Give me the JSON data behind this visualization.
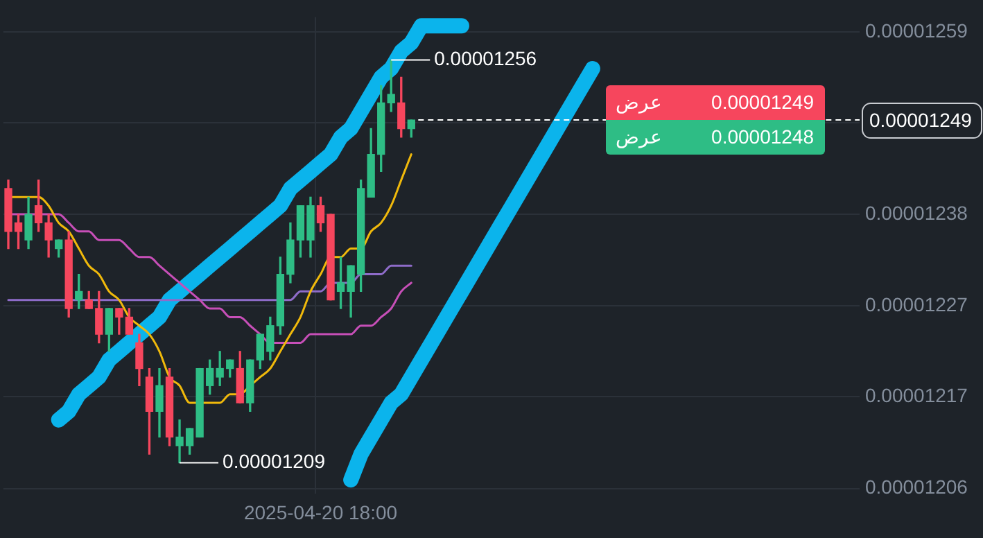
{
  "chart_data": {
    "type": "candlestick",
    "categories": [
      null,
      null,
      null,
      null,
      null,
      null,
      null,
      null,
      null,
      null,
      null,
      null,
      null,
      null,
      null,
      null,
      null,
      null,
      null,
      null,
      null,
      null,
      null,
      null,
      null,
      null,
      null,
      null,
      null,
      null,
      null,
      "2025-04-20 18:00",
      null,
      null,
      null,
      null,
      null,
      null,
      null,
      null,
      null,
      null,
      null,
      null,
      null,
      null,
      null,
      null,
      null,
      null,
      null,
      null,
      null,
      null,
      null,
      null,
      null,
      null,
      null,
      null,
      null,
      null,
      null,
      null,
      null,
      null,
      null,
      null,
      null,
      null,
      null,
      null,
      null,
      null,
      null,
      null,
      null,
      null,
      null,
      null,
      null,
      null,
      null,
      null,
      null
    ],
    "ohlc": [
      [
        1.241e-05,
        1.242e-05,
        1.234e-05,
        1.236e-05
      ],
      [
        1.237e-05,
        1.238e-05,
        1.234e-05,
        1.236e-05
      ],
      [
        1.235e-05,
        1.24e-05,
        1.234e-05,
        1.238e-05
      ],
      [
        1.239e-05,
        1.242e-05,
        1.236e-05,
        1.237e-05
      ],
      [
        1.237e-05,
        1.238e-05,
        1.233e-05,
        1.235e-05
      ],
      [
        1.234e-05,
        1.235e-05,
        1.233e-05,
        1.235e-05
      ],
      [
        1.235e-05,
        1.236e-05,
        1.226e-05,
        1.227e-05
      ],
      [
        1.228e-05,
        1.231e-05,
        1.227e-05,
        1.229e-05
      ],
      [
        1.228e-05,
        1.229e-05,
        1.227e-05,
        1.227e-05
      ],
      [
        1.227e-05,
        1.229e-05,
        1.223e-05,
        1.224e-05
      ],
      [
        1.224e-05,
        1.227e-05,
        1.222e-05,
        1.227e-05
      ],
      [
        1.227e-05,
        1.227e-05,
        1.224e-05,
        1.226e-05
      ],
      [
        1.226e-05,
        1.227e-05,
        1.224e-05,
        1.224e-05
      ],
      [
        1.223e-05,
        1.224e-05,
        1.218e-05,
        1.22e-05
      ],
      [
        1.219e-05,
        1.22e-05,
        1.21e-05,
        1.215e-05
      ],
      [
        1.215e-05,
        1.22e-05,
        1.212e-05,
        1.218e-05
      ],
      [
        1.219e-05,
        1.22e-05,
        1.211e-05,
        1.212e-05
      ],
      [
        1.211e-05,
        1.214e-05,
        1.209e-05,
        1.212e-05
      ],
      [
        1.211e-05,
        1.213e-05,
        1.21e-05,
        1.213e-05
      ],
      [
        1.212e-05,
        1.22e-05,
        1.212e-05,
        1.22e-05
      ],
      [
        1.218e-05,
        1.221e-05,
        1.217e-05,
        1.22e-05
      ],
      [
        1.219e-05,
        1.222e-05,
        1.218e-05,
        1.22e-05
      ],
      [
        1.22e-05,
        1.221e-05,
        1.219e-05,
        1.221e-05
      ],
      [
        1.22e-05,
        1.222e-05,
        1.216e-05,
        1.216e-05
      ],
      [
        1.216e-05,
        1.221e-05,
        1.215e-05,
        1.221e-05
      ],
      [
        1.221e-05,
        1.224e-05,
        1.22e-05,
        1.224e-05
      ],
      [
        1.222e-05,
        1.226e-05,
        1.221e-05,
        1.225e-05
      ],
      [
        1.225e-05,
        1.233e-05,
        1.224e-05,
        1.231e-05
      ],
      [
        1.231e-05,
        1.237e-05,
        1.23e-05,
        1.235e-05
      ],
      [
        1.235e-05,
        1.239e-05,
        1.233e-05,
        1.239e-05
      ],
      [
        1.235e-05,
        1.24e-05,
        1.233e-05,
        1.239e-05
      ],
      [
        1.239e-05,
        1.24e-05,
        1.236e-05,
        1.237e-05
      ],
      [
        1.238e-05,
        1.238e-05,
        1.228e-05,
        1.228e-05
      ],
      [
        1.229e-05,
        1.233e-05,
        1.227e-05,
        1.23e-05
      ],
      [
        1.229e-05,
        1.232e-05,
        1.226e-05,
        1.232e-05
      ],
      [
        1.231e-05,
        1.242e-05,
        1.229e-05,
        1.241e-05
      ],
      [
        1.24e-05,
        1.248e-05,
        1.24e-05,
        1.245e-05
      ],
      [
        1.245e-05,
        1.253e-05,
        1.243e-05,
        1.251e-05
      ],
      [
        1.251e-05,
        1.256e-05,
        1.25e-05,
        1.252e-05
      ],
      [
        1.251e-05,
        1.254e-05,
        1.247e-05,
        1.248e-05
      ],
      [
        1.248e-05,
        1.249e-05,
        1.247e-05,
        1.249e-05
      ],
      null,
      null,
      null,
      null,
      null,
      null,
      null,
      null,
      null,
      null,
      null,
      null,
      null,
      null,
      null,
      null,
      null,
      null,
      null,
      null,
      null,
      null,
      null,
      null,
      null,
      null,
      null,
      null,
      null,
      null,
      null,
      null,
      null,
      null,
      null,
      null,
      null,
      null,
      null,
      null,
      null,
      null,
      null,
      null
    ],
    "series": [
      {
        "type": "line",
        "color": "#f0b90b",
        "values": [
          1.24e-05,
          1.24e-05,
          1.24e-05,
          1.24e-05,
          1.239e-05,
          1.237e-05,
          1.236e-05,
          1.234e-05,
          1.232e-05,
          1.231e-05,
          1.229e-05,
          1.228e-05,
          1.226e-05,
          1.225e-05,
          1.224e-05,
          1.222e-05,
          1.219e-05,
          1.218e-05,
          1.216e-05,
          1.216e-05,
          1.216e-05,
          1.216e-05,
          1.217e-05,
          1.217e-05,
          1.218e-05,
          1.219e-05,
          1.22e-05,
          1.222e-05,
          1.224e-05,
          1.226e-05,
          1.229e-05,
          1.231e-05,
          1.233e-05,
          1.233e-05,
          1.234e-05,
          1.234e-05,
          1.236e-05,
          1.237e-05,
          1.239e-05,
          1.242e-05,
          1.245e-05,
          null,
          null,
          null,
          null,
          null,
          null,
          null,
          null,
          null,
          null,
          null,
          null,
          null,
          null,
          null,
          null,
          null,
          null,
          null,
          null,
          null,
          null,
          null,
          null,
          null,
          null,
          null,
          null,
          null,
          null,
          null,
          null,
          null,
          null,
          null,
          null,
          null,
          null,
          null,
          null,
          null,
          null,
          null,
          null
        ]
      },
      {
        "type": "line",
        "color": "#c74fb8",
        "values": [
          1.238e-05,
          1.238e-05,
          1.238e-05,
          1.238e-05,
          1.238e-05,
          1.238e-05,
          1.237e-05,
          1.236e-05,
          1.236e-05,
          1.235e-05,
          1.235e-05,
          1.235e-05,
          1.234e-05,
          1.233e-05,
          1.233e-05,
          1.232e-05,
          1.231e-05,
          1.23e-05,
          1.229e-05,
          1.228e-05,
          1.227e-05,
          1.227e-05,
          1.226e-05,
          1.226e-05,
          1.225e-05,
          1.224e-05,
          1.223e-05,
          1.223e-05,
          1.223e-05,
          1.223e-05,
          1.224e-05,
          1.224e-05,
          1.224e-05,
          1.224e-05,
          1.224e-05,
          1.225e-05,
          1.225e-05,
          1.226e-05,
          1.227e-05,
          1.229e-05,
          1.23e-05,
          null,
          null,
          null,
          null,
          null,
          null,
          null,
          null,
          null,
          null,
          null,
          null,
          null,
          null,
          null,
          null,
          null,
          null,
          null,
          null,
          null,
          null,
          null,
          null,
          null,
          null,
          null,
          null,
          null,
          null,
          null,
          null,
          null,
          null,
          null,
          null,
          null,
          null,
          null,
          null,
          null,
          null,
          null,
          null
        ]
      },
      {
        "type": "line",
        "color": "#8e6cc9",
        "values": [
          1.228e-05,
          1.228e-05,
          1.228e-05,
          1.228e-05,
          1.228e-05,
          1.228e-05,
          1.228e-05,
          1.228e-05,
          1.228e-05,
          1.228e-05,
          1.228e-05,
          1.228e-05,
          1.228e-05,
          1.228e-05,
          1.228e-05,
          1.228e-05,
          1.228e-05,
          1.228e-05,
          1.228e-05,
          1.228e-05,
          1.228e-05,
          1.228e-05,
          1.228e-05,
          1.228e-05,
          1.228e-05,
          1.228e-05,
          1.228e-05,
          1.228e-05,
          1.228e-05,
          1.229e-05,
          1.229e-05,
          1.229e-05,
          1.23e-05,
          1.23e-05,
          1.23e-05,
          1.231e-05,
          1.231e-05,
          1.231e-05,
          1.232e-05,
          1.232e-05,
          1.232e-05,
          null,
          null,
          null,
          null,
          null,
          null,
          null,
          null,
          null,
          null,
          null,
          null,
          null,
          null,
          null,
          null,
          null,
          null,
          null,
          null,
          null,
          null,
          null,
          null,
          null,
          null,
          null,
          null,
          null,
          null,
          null,
          null,
          null,
          null,
          null,
          null,
          null,
          null,
          null,
          null,
          null,
          null,
          null,
          null
        ]
      },
      {
        "type": "line",
        "color": "#0bb4ec",
        "values": [
          null,
          null,
          null,
          null,
          null,
          1.214e-05,
          1.215e-05,
          1.217e-05,
          1.218e-05,
          1.219e-05,
          1.221e-05,
          1.222e-05,
          1.223e-05,
          1.224e-05,
          1.225e-05,
          1.226e-05,
          1.228e-05,
          1.229e-05,
          1.23e-05,
          1.231e-05,
          1.232e-05,
          1.233e-05,
          1.234e-05,
          1.235e-05,
          1.236e-05,
          1.237e-05,
          1.238e-05,
          1.239e-05,
          1.241e-05,
          1.242e-05,
          1.243e-05,
          1.244e-05,
          1.245e-05,
          1.247e-05,
          1.248e-05,
          1.25e-05,
          1.252e-05,
          1.254e-05,
          1.255e-05,
          1.257e-05,
          1.258e-05,
          1.26e-05,
          1.26e-05,
          1.26e-05,
          1.26e-05,
          1.26e-05,
          null,
          null,
          null,
          null,
          null,
          null,
          null,
          null,
          null,
          null,
          null,
          null,
          null,
          null,
          null,
          null,
          null,
          null,
          null,
          null,
          null,
          null,
          null,
          null,
          null,
          null,
          null,
          null,
          null,
          null,
          null,
          null,
          null,
          null,
          null,
          null,
          null,
          null,
          null
        ]
      },
      {
        "type": "line",
        "color": "#0bb4ec",
        "values": [
          null,
          null,
          null,
          null,
          null,
          null,
          null,
          null,
          null,
          null,
          null,
          null,
          null,
          null,
          null,
          null,
          null,
          null,
          null,
          null,
          null,
          null,
          null,
          null,
          null,
          null,
          null,
          null,
          null,
          null,
          null,
          null,
          null,
          null,
          1.207e-05,
          1.21e-05,
          1.212e-05,
          1.214e-05,
          1.216e-05,
          1.217e-05,
          1.219e-05,
          1.221e-05,
          1.223e-05,
          1.225e-05,
          1.227e-05,
          1.229e-05,
          1.231e-05,
          1.233e-05,
          1.235e-05,
          1.237e-05,
          1.239e-05,
          1.241e-05,
          1.243e-05,
          1.245e-05,
          1.247e-05,
          1.249e-05,
          1.251e-05,
          1.253e-05,
          1.255e-05,
          null,
          null,
          null,
          null,
          null,
          null,
          null,
          null,
          null,
          null,
          null,
          null,
          null,
          null,
          null,
          null,
          null,
          null,
          null,
          null,
          null,
          null,
          null,
          null,
          null,
          null
        ]
      }
    ],
    "ylim": [
      1.2054e-05,
      1.261e-05
    ],
    "yticks": [
      {
        "value": 1.206e-05,
        "label": "0.00001206"
      },
      {
        "value": 1.2167e-05,
        "label": "0.00001217"
      },
      {
        "value": 1.2273e-05,
        "label": "0.00001227"
      },
      {
        "value": 1.238e-05,
        "label": "0.00001238"
      },
      {
        "value": 1.2487e-05,
        "label": null
      },
      {
        "value": 1.2593e-05,
        "label": "0.00001259"
      }
    ],
    "grid": true,
    "ref_lines": [
      {
        "axis": "y",
        "value": 1.249e-05,
        "label": "0.00001249",
        "color": "#ffffff",
        "line_style": "dashed"
      }
    ],
    "annotations": [
      "0.00001256",
      "0.00001209",
      "عرض 0.00001249",
      "عرض 0.00001248"
    ]
  }
}
